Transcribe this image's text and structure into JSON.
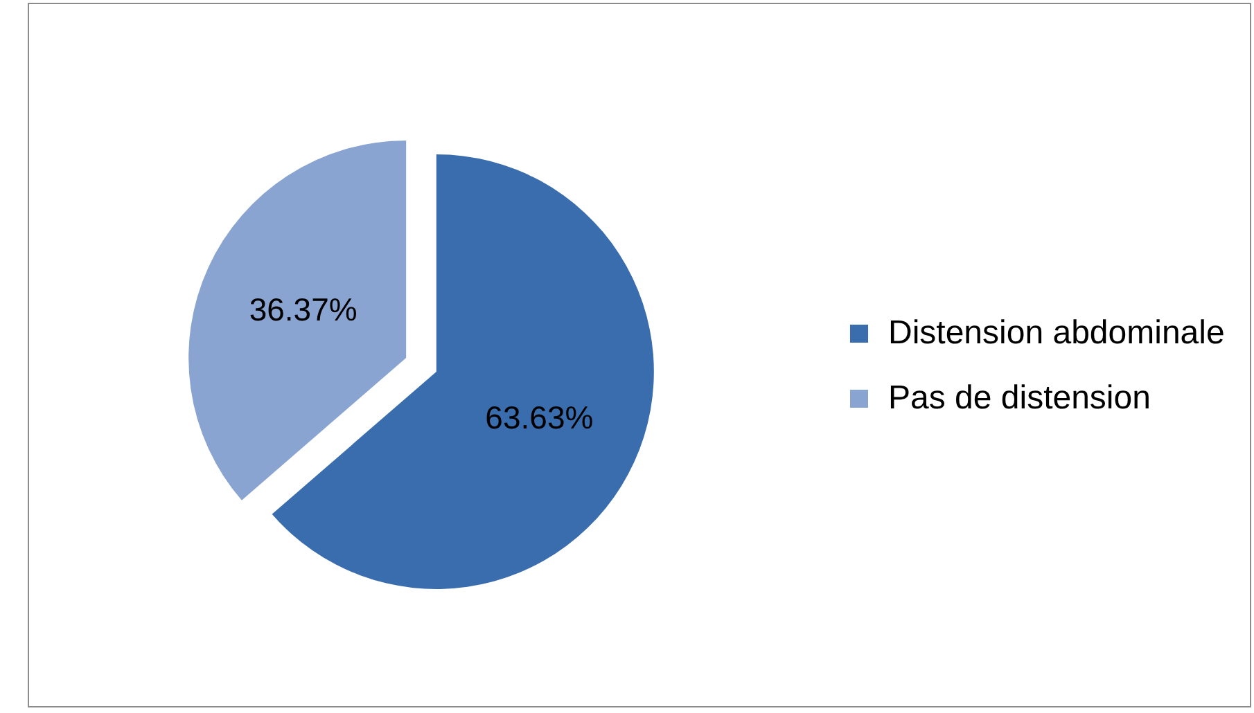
{
  "chart_data": {
    "type": "pie",
    "categories": [
      "Distension abdominale",
      "Pas de distension"
    ],
    "values": [
      63.63,
      36.37
    ],
    "colors": [
      "#3a6dae",
      "#8aa4d2"
    ],
    "value_labels": [
      "63.63%",
      "36.37%"
    ],
    "legend": "right"
  }
}
